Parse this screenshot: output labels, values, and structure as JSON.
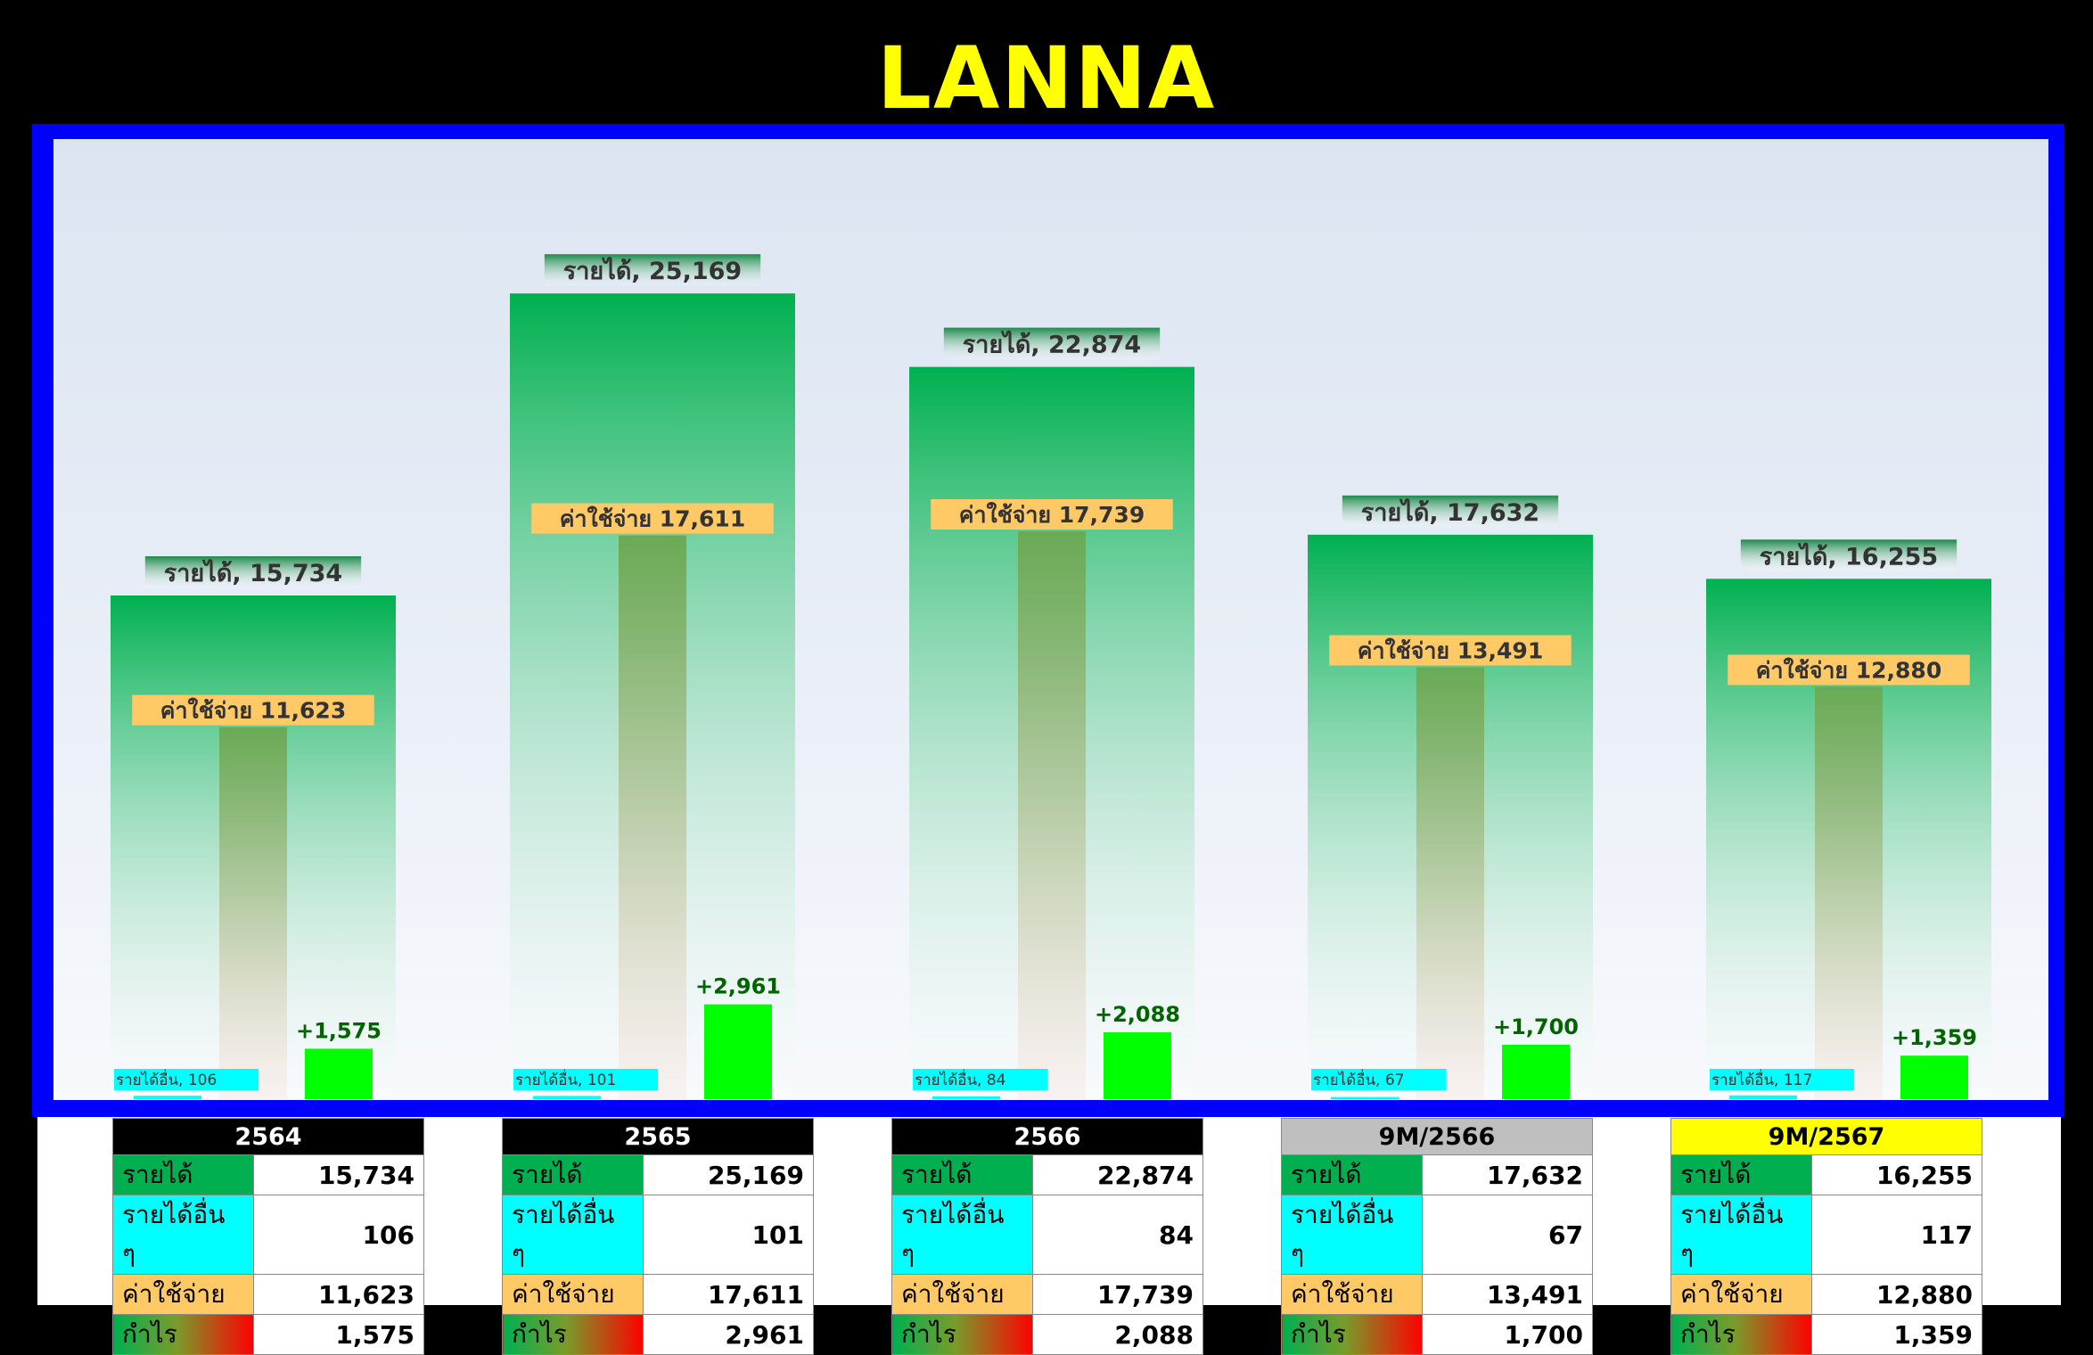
{
  "title": "LANNA",
  "colors": {
    "title": "#ffff00",
    "frame": "#0000ff",
    "revenue_top": "#00b050",
    "expense_top": "#6aaa55",
    "expense_bottom": "#f0dcd9",
    "profit": "#00ff00",
    "profit_text": "#006400",
    "other_income": "#00ffff",
    "expense_label": "#ffc966"
  },
  "chart_data": {
    "type": "bar",
    "categories": [
      "2564",
      "2565",
      "2566",
      "9M/2566",
      "9M/2567"
    ],
    "series": [
      {
        "name": "รายได้",
        "values": [
          15734,
          25169,
          22874,
          17632,
          16255
        ]
      },
      {
        "name": "รายได้อื่น",
        "values": [
          106,
          101,
          84,
          67,
          117
        ]
      },
      {
        "name": "ค่าใช้จ่าย",
        "values": [
          11623,
          17611,
          17739,
          13491,
          12880
        ]
      },
      {
        "name": "กำไร",
        "values": [
          1575,
          2961,
          2088,
          1700,
          1359
        ]
      }
    ],
    "ylim": [
      0,
      30000
    ],
    "grid": false,
    "data_labels": {
      "revenue": [
        "รายได้, 15,734",
        "รายได้, 25,169",
        "รายได้, 22,874",
        "รายได้, 17,632",
        "รายได้, 16,255"
      ],
      "other_income": [
        "รายได้อื่น, 106",
        "รายได้อื่น, 101",
        "รายได้อื่น, 84",
        "รายได้อื่น, 67",
        "รายได้อื่น, 117"
      ],
      "expense": [
        "ค่าใช้จ่าย 11,623",
        "ค่าใช้จ่าย 17,611",
        "ค่าใช้จ่าย 17,739",
        "ค่าใช้จ่าย 13,491",
        "ค่าใช้จ่าย 12,880"
      ],
      "profit": [
        "+1,575",
        "+2,961",
        "+2,088",
        "+1,700",
        "+1,359"
      ]
    }
  },
  "tables": [
    {
      "period": "2564",
      "header_bg": "#000000",
      "header_color": "#ffffff",
      "rows": [
        [
          "รายได้",
          "15,734"
        ],
        [
          "รายได้อื่น ๆ",
          "106"
        ],
        [
          "ค่าใช้จ่าย",
          "11,623"
        ],
        [
          "กำไร",
          "1,575"
        ]
      ]
    },
    {
      "period": "2565",
      "header_bg": "#000000",
      "header_color": "#ffffff",
      "rows": [
        [
          "รายได้",
          "25,169"
        ],
        [
          "รายได้อื่น ๆ",
          "101"
        ],
        [
          "ค่าใช้จ่าย",
          "17,611"
        ],
        [
          "กำไร",
          "2,961"
        ]
      ]
    },
    {
      "period": "2566",
      "header_bg": "#000000",
      "header_color": "#ffffff",
      "rows": [
        [
          "รายได้",
          "22,874"
        ],
        [
          "รายได้อื่น ๆ",
          "84"
        ],
        [
          "ค่าใช้จ่าย",
          "17,739"
        ],
        [
          "กำไร",
          "2,088"
        ]
      ]
    },
    {
      "period": "9M/2566",
      "header_bg": "#bfbfbf",
      "header_color": "#000000",
      "rows": [
        [
          "รายได้",
          "17,632"
        ],
        [
          "รายได้อื่น ๆ",
          "67"
        ],
        [
          "ค่าใช้จ่าย",
          "13,491"
        ],
        [
          "กำไร",
          "1,700"
        ]
      ]
    },
    {
      "period": "9M/2567",
      "header_bg": "#ffff00",
      "header_color": "#000000",
      "rows": [
        [
          "รายได้",
          "16,255"
        ],
        [
          "รายได้อื่น ๆ",
          "117"
        ],
        [
          "ค่าใช้จ่าย",
          "12,880"
        ],
        [
          "กำไร",
          "1,359"
        ]
      ]
    }
  ]
}
